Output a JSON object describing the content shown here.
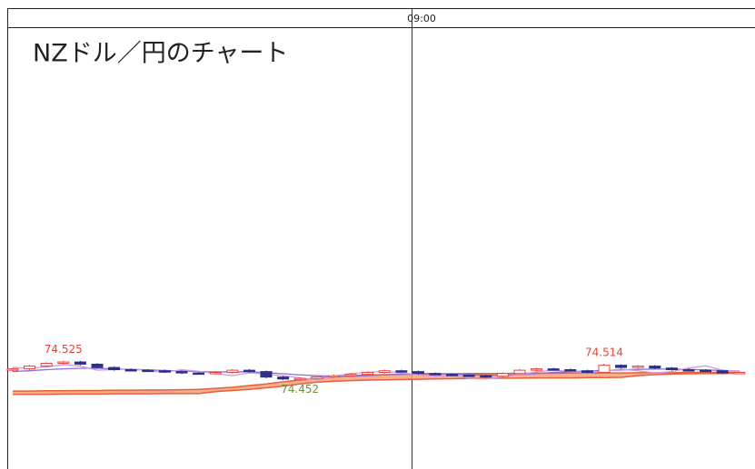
{
  "chart_data": {
    "type": "candlestick",
    "title": "NZドル／円のチャート",
    "time_marker": "09:00",
    "ylim": [
      74.13,
      75.74
    ],
    "up_color": "#e8433a",
    "down_color": "#2b2f8f",
    "open": [
      74.49,
      74.495,
      74.505,
      74.515,
      74.52,
      74.512,
      74.5,
      74.492,
      74.49,
      74.488,
      74.485,
      74.48,
      74.478,
      74.482,
      74.49,
      74.485,
      74.465,
      74.458,
      74.46,
      74.466,
      74.47,
      74.475,
      74.482,
      74.488,
      74.485,
      74.478,
      74.475,
      74.472,
      74.47,
      74.468,
      74.478,
      74.49,
      74.495,
      74.492,
      74.488,
      74.482,
      74.508,
      74.5,
      74.505,
      74.498,
      74.492,
      74.49,
      74.488,
      74.48
    ],
    "high": [
      74.499,
      74.509,
      74.519,
      74.525,
      74.524,
      74.516,
      74.504,
      74.496,
      74.494,
      74.492,
      74.489,
      74.484,
      74.486,
      74.494,
      74.494,
      74.489,
      74.469,
      74.464,
      74.47,
      74.474,
      74.479,
      74.486,
      74.492,
      74.492,
      74.489,
      74.482,
      74.479,
      74.476,
      74.474,
      74.482,
      74.494,
      74.499,
      74.499,
      74.496,
      74.492,
      74.514,
      74.512,
      74.509,
      74.509,
      74.502,
      74.496,
      74.494,
      74.492,
      74.486
    ],
    "low": [
      74.486,
      74.491,
      74.501,
      74.511,
      74.508,
      74.496,
      74.488,
      74.486,
      74.484,
      74.481,
      74.476,
      74.474,
      74.474,
      74.478,
      74.481,
      74.461,
      74.454,
      74.452,
      74.456,
      74.462,
      74.466,
      74.471,
      74.478,
      74.481,
      74.474,
      74.471,
      74.468,
      74.466,
      74.464,
      74.464,
      74.474,
      74.486,
      74.488,
      74.484,
      74.478,
      74.478,
      74.496,
      74.496,
      74.494,
      74.488,
      74.486,
      74.484,
      74.476,
      74.476
    ],
    "close": [
      74.495,
      74.505,
      74.515,
      74.52,
      74.512,
      74.5,
      74.492,
      74.49,
      74.488,
      74.485,
      74.48,
      74.478,
      74.482,
      74.49,
      74.485,
      74.465,
      74.458,
      74.46,
      74.466,
      74.47,
      74.475,
      74.482,
      74.488,
      74.485,
      74.478,
      74.475,
      74.472,
      74.47,
      74.468,
      74.478,
      74.49,
      74.495,
      74.492,
      74.488,
      74.482,
      74.508,
      74.5,
      74.505,
      74.498,
      74.492,
      74.49,
      74.488,
      74.48,
      74.482
    ],
    "high_labels": [
      null,
      null,
      null,
      "74.525",
      null,
      null,
      null,
      null,
      null,
      null,
      null,
      null,
      null,
      null,
      null,
      null,
      null,
      null,
      null,
      null,
      null,
      null,
      null,
      null,
      null,
      null,
      null,
      null,
      null,
      null,
      null,
      null,
      null,
      null,
      null,
      "74.514",
      null,
      null,
      null,
      null,
      null,
      null,
      null,
      null
    ],
    "low_labels": [
      null,
      null,
      null,
      null,
      null,
      null,
      null,
      null,
      null,
      null,
      null,
      null,
      null,
      null,
      null,
      null,
      null,
      "74.452",
      null,
      null,
      null,
      null,
      null,
      null,
      null,
      null,
      null,
      null,
      null,
      null,
      null,
      null,
      null,
      null,
      null,
      null,
      null,
      null,
      null,
      null,
      null,
      null,
      null,
      null
    ],
    "series": [
      {
        "color": "#8a6fd6",
        "values": [
          74.485,
          74.488,
          74.492,
          74.495,
          74.497,
          74.497,
          74.495,
          74.493,
          74.491,
          74.489,
          74.487,
          74.485,
          74.484,
          74.484,
          74.484,
          74.481,
          74.477,
          74.473,
          74.47,
          74.468,
          74.468,
          74.47,
          74.473,
          74.476,
          74.478,
          74.478,
          74.476,
          74.474,
          74.472,
          74.472,
          74.474,
          74.478,
          74.482,
          74.485,
          74.487,
          74.489,
          74.491,
          74.493,
          74.494,
          74.494,
          74.493,
          74.491,
          74.489,
          74.487
        ]
      },
      {
        "color": "#d49adf",
        "values": [
          74.5,
          74.498,
          74.502,
          74.51,
          74.505,
          74.49,
          74.492,
          74.495,
          74.488,
          74.482,
          74.492,
          74.486,
          74.478,
          74.47,
          74.48,
          74.476,
          74.47,
          74.462,
          74.455,
          74.468,
          74.478,
          74.482,
          74.486,
          74.48,
          74.474,
          74.468,
          74.472,
          74.46,
          74.458,
          74.466,
          74.474,
          74.484,
          74.49,
          74.486,
          74.48,
          74.488,
          74.494,
          74.488,
          74.48,
          74.485,
          74.498,
          74.506,
          74.49,
          74.486
        ]
      }
    ],
    "cloud": {
      "fill": "#f3a07a",
      "edge": "#e8603a",
      "upper": [
        74.414,
        74.414,
        74.415,
        74.415,
        74.416,
        74.416,
        74.417,
        74.417,
        74.418,
        74.418,
        74.419,
        74.42,
        74.424,
        74.428,
        74.434,
        74.44,
        74.448,
        74.455,
        74.462,
        74.466,
        74.47,
        74.472,
        74.474,
        74.475,
        74.476,
        74.477,
        74.477,
        74.478,
        74.478,
        74.478,
        74.479,
        74.479,
        74.479,
        74.48,
        74.48,
        74.48,
        74.48,
        74.481,
        74.481,
        74.481,
        74.482,
        74.482,
        74.482,
        74.482
      ],
      "lower": [
        74.402,
        74.402,
        74.402,
        74.403,
        74.403,
        74.403,
        74.404,
        74.404,
        74.404,
        74.405,
        74.405,
        74.405,
        74.412,
        74.416,
        74.42,
        74.426,
        74.432,
        74.44,
        74.446,
        74.45,
        74.452,
        74.454,
        74.455,
        74.456,
        74.457,
        74.458,
        74.459,
        74.46,
        74.46,
        74.461,
        74.461,
        74.462,
        74.462,
        74.462,
        74.463,
        74.463,
        74.464,
        74.47,
        74.474,
        74.476,
        74.477,
        74.478,
        74.478,
        74.479
      ]
    }
  }
}
